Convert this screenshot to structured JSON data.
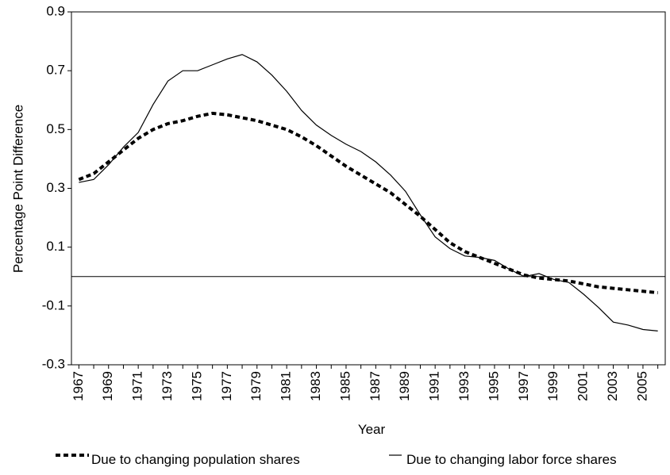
{
  "chart_data": {
    "type": "line",
    "x_label": "Year",
    "y_label": "Percentage Point Difference",
    "categories": [
      "1967",
      null,
      "1969",
      null,
      "1971",
      null,
      "1973",
      null,
      "1975",
      null,
      "1977",
      null,
      "1979",
      null,
      "1981",
      null,
      "1983",
      null,
      "1985",
      null,
      "1987",
      null,
      "1989",
      null,
      "1991",
      null,
      "1993",
      null,
      "1995",
      null,
      "1997",
      null,
      "1999",
      null,
      "2001",
      null,
      "2003",
      null,
      "2005",
      null
    ],
    "series": [
      {
        "name": "Due to changing population shares",
        "color": "#000000",
        "style": "dashed",
        "values": [
          0.33,
          0.35,
          0.39,
          0.43,
          0.47,
          0.5,
          0.52,
          0.53,
          0.545,
          0.555,
          0.55,
          0.54,
          0.53,
          0.515,
          0.5,
          0.475,
          0.445,
          0.41,
          0.375,
          0.345,
          0.315,
          0.285,
          0.245,
          0.205,
          0.16,
          0.115,
          0.085,
          0.065,
          0.045,
          0.025,
          0.005,
          -0.005,
          -0.01,
          -0.015,
          -0.025,
          -0.035,
          -0.04,
          -0.045,
          -0.05,
          -0.055
        ]
      },
      {
        "name": "Due to changing labor force shares",
        "color": "#000000",
        "style": "solid",
        "values": [
          0.32,
          0.33,
          0.38,
          0.44,
          0.49,
          0.585,
          0.665,
          0.7,
          0.7,
          0.72,
          0.74,
          0.755,
          0.73,
          0.685,
          0.63,
          0.565,
          0.515,
          0.48,
          0.45,
          0.425,
          0.39,
          0.345,
          0.29,
          0.21,
          0.135,
          0.095,
          0.07,
          0.065,
          0.055,
          0.025,
          0.0,
          0.01,
          -0.01,
          -0.02,
          -0.06,
          -0.105,
          -0.155,
          -0.165,
          -0.18,
          -0.185
        ]
      }
    ],
    "ylim": [
      -0.3,
      0.9
    ],
    "yticks": [
      -0.3,
      -0.1,
      0.1,
      0.3,
      0.5,
      0.7,
      0.9
    ],
    "legend": "bottom"
  }
}
